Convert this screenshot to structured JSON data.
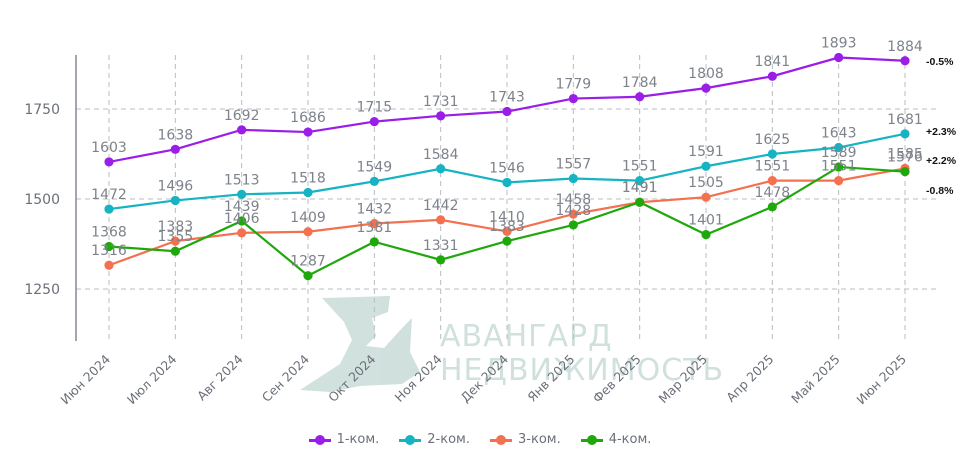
{
  "chart_data": {
    "type": "line",
    "title": "",
    "xlabel": "",
    "ylabel": "",
    "categories": [
      "Июн 2024",
      "Июл 2024",
      "Авг 2024",
      "Сен 2024",
      "Окт 2024",
      "Ноя 2024",
      "Дек 2024",
      "Янв 2025",
      "Фев 2025",
      "Мар 2025",
      "Апр 2025",
      "Май 2025",
      "Июн 2025"
    ],
    "yticks": [
      1250,
      1500,
      1750
    ],
    "ylim": [
      1150,
      1905
    ],
    "grid": true,
    "legend_position": "bottom",
    "series": [
      {
        "name": "1-ком.",
        "color": "#9a1ee8",
        "values": [
          1603,
          1638,
          1692,
          1686,
          1715,
          1731,
          1743,
          1779,
          1784,
          1808,
          1841,
          1893,
          1884
        ],
        "change": "-0.5%"
      },
      {
        "name": "2-ком.",
        "color": "#16b3c3",
        "values": [
          1472,
          1496,
          1513,
          1518,
          1549,
          1584,
          1546,
          1557,
          1551,
          1591,
          1625,
          1643,
          1681
        ],
        "change": "+2.3%"
      },
      {
        "name": "3-ком.",
        "color": "#f4714f",
        "values": [
          1316,
          1383,
          1406,
          1409,
          1432,
          1442,
          1410,
          1458,
          1491,
          1505,
          1551,
          1551,
          1585
        ],
        "change": "+2.2%"
      },
      {
        "name": "4-ком.",
        "color": "#1fa80c",
        "values": [
          1368,
          1355,
          1439,
          1287,
          1381,
          1331,
          1383,
          1428,
          1491,
          1401,
          1478,
          1589,
          1576
        ],
        "change": "-0.8%"
      }
    ],
    "watermark": {
      "line1": "АВАНГАРД",
      "line2": "НЕДВИЖИМОСТЬ"
    }
  },
  "legend": {
    "items": [
      {
        "label": "1-ком.",
        "color": "#9a1ee8"
      },
      {
        "label": "2-ком.",
        "color": "#16b3c3"
      },
      {
        "label": "3-ком.",
        "color": "#f4714f"
      },
      {
        "label": "4-ком.",
        "color": "#1fa80c"
      }
    ]
  }
}
